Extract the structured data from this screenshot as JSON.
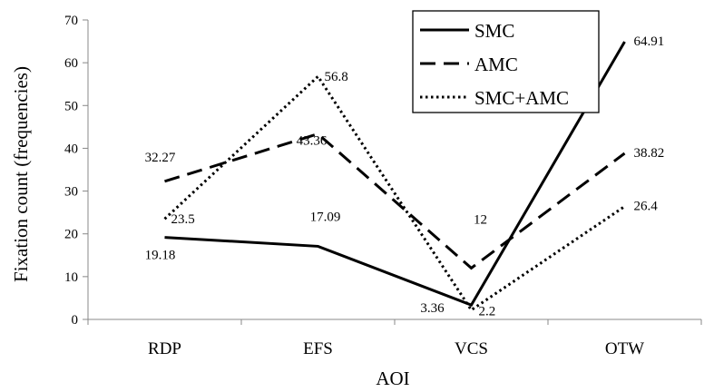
{
  "chart_data": {
    "type": "line",
    "categories": [
      "RDP",
      "EFS",
      "VCS",
      "OTW"
    ],
    "series": [
      {
        "name": "SMC",
        "values": [
          19.18,
          17.09,
          3.36,
          64.91
        ],
        "labels": [
          "19.18",
          "17.09",
          "3.36",
          "64.91"
        ],
        "style": "solid",
        "color": "#000000"
      },
      {
        "name": "AMC",
        "values": [
          32.27,
          43.36,
          12,
          38.82
        ],
        "labels": [
          "32.27",
          "43.36",
          "12",
          "38.82"
        ],
        "style": "dashed",
        "color": "#000000"
      },
      {
        "name": "SMC+AMC",
        "values": [
          23.5,
          56.8,
          2.2,
          26.4
        ],
        "labels": [
          "23.5",
          "56.8",
          "2.2",
          "26.4"
        ],
        "style": "dotted",
        "color": "#000000"
      }
    ],
    "ylabel": "Fixation count (frequencies)",
    "xlabel": "AOI",
    "ylim": [
      0,
      70
    ],
    "yticks": [
      0,
      10,
      20,
      30,
      40,
      50,
      60,
      70
    ],
    "grid": false,
    "legend_position": "top-right"
  }
}
